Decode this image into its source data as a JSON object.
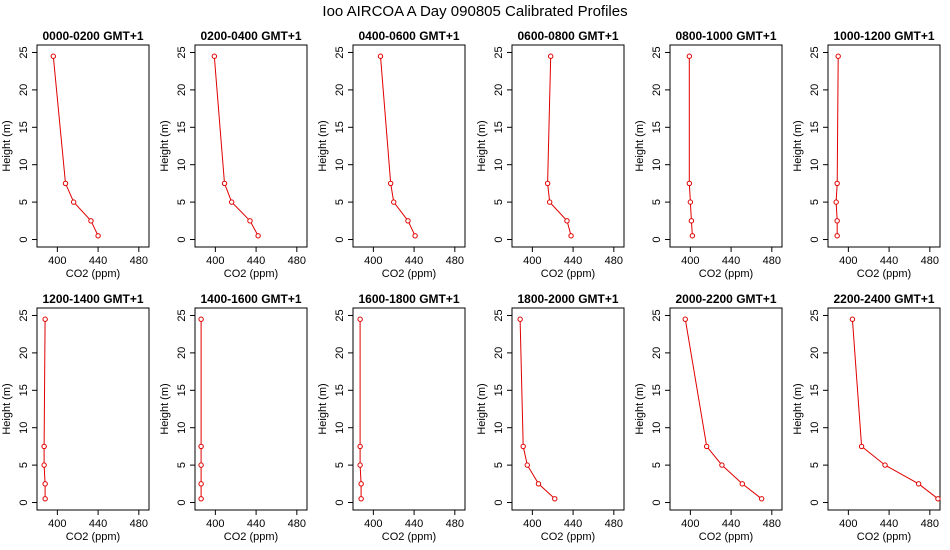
{
  "figure": {
    "title": "Ioo AIRCOA A  Day 090805  Calibrated Profiles",
    "xlabel": "CO2 (ppm)",
    "ylabel": "Height (m)",
    "line_color": "#e00000",
    "axis_color": "#000000"
  },
  "chart_data": [
    {
      "type": "line",
      "title": "0000-0200 GMT+1",
      "xlabel": "CO2 (ppm)",
      "ylabel": "Height (m)",
      "xlim": [
        380,
        490
      ],
      "ylim": [
        -1,
        26
      ],
      "xticks": [
        400,
        440,
        480
      ],
      "yticks": [
        0,
        5,
        10,
        15,
        20,
        25
      ],
      "x": [
        440,
        433,
        416,
        408,
        396
      ],
      "y": [
        0.5,
        2.5,
        5,
        7.5,
        24.5
      ]
    },
    {
      "type": "line",
      "title": "0200-0400 GMT+1",
      "xlabel": "CO2 (ppm)",
      "ylabel": "Height (m)",
      "xlim": [
        380,
        490
      ],
      "ylim": [
        -1,
        26
      ],
      "xticks": [
        400,
        440,
        480
      ],
      "yticks": [
        0,
        5,
        10,
        15,
        20,
        25
      ],
      "x": [
        442,
        434,
        416,
        409,
        399
      ],
      "y": [
        0.5,
        2.5,
        5,
        7.5,
        24.5
      ]
    },
    {
      "type": "line",
      "title": "0400-0600 GMT+1",
      "xlabel": "CO2 (ppm)",
      "ylabel": "Height (m)",
      "xlim": [
        380,
        490
      ],
      "ylim": [
        -1,
        26
      ],
      "xticks": [
        400,
        440,
        480
      ],
      "yticks": [
        0,
        5,
        10,
        15,
        20,
        25
      ],
      "x": [
        441,
        434,
        420,
        417,
        407
      ],
      "y": [
        0.5,
        2.5,
        5,
        7.5,
        24.5
      ]
    },
    {
      "type": "line",
      "title": "0600-0800 GMT+1",
      "xlabel": "CO2 (ppm)",
      "ylabel": "Height (m)",
      "xlim": [
        380,
        490
      ],
      "ylim": [
        -1,
        26
      ],
      "xticks": [
        400,
        440,
        480
      ],
      "yticks": [
        0,
        5,
        10,
        15,
        20,
        25
      ],
      "x": [
        438,
        434,
        417,
        415,
        418
      ],
      "y": [
        0.5,
        2.5,
        5,
        7.5,
        24.5
      ]
    },
    {
      "type": "line",
      "title": "0800-1000 GMT+1",
      "xlabel": "CO2 (ppm)",
      "ylabel": "Height (m)",
      "xlim": [
        380,
        490
      ],
      "ylim": [
        -1,
        26
      ],
      "xticks": [
        400,
        440,
        480
      ],
      "yticks": [
        0,
        5,
        10,
        15,
        20,
        25
      ],
      "x": [
        402,
        401,
        400,
        399,
        399
      ],
      "y": [
        0.5,
        2.5,
        5,
        7.5,
        24.5
      ]
    },
    {
      "type": "line",
      "title": "1000-1200 GMT+1",
      "xlabel": "CO2 (ppm)",
      "ylabel": "Height (m)",
      "xlim": [
        380,
        490
      ],
      "ylim": [
        -1,
        26
      ],
      "xticks": [
        400,
        440,
        480
      ],
      "yticks": [
        0,
        5,
        10,
        15,
        20,
        25
      ],
      "x": [
        389,
        389,
        388,
        389,
        390
      ],
      "y": [
        0.5,
        2.5,
        5,
        7.5,
        24.5
      ]
    },
    {
      "type": "line",
      "title": "1200-1400 GMT+1",
      "xlabel": "CO2 (ppm)",
      "ylabel": "Height (m)",
      "xlim": [
        380,
        490
      ],
      "ylim": [
        -1,
        26
      ],
      "xticks": [
        400,
        440,
        480
      ],
      "yticks": [
        0,
        5,
        10,
        15,
        20,
        25
      ],
      "x": [
        388,
        388,
        387,
        387,
        388
      ],
      "y": [
        0.5,
        2.5,
        5,
        7.5,
        24.5
      ]
    },
    {
      "type": "line",
      "title": "1400-1600 GMT+1",
      "xlabel": "CO2 (ppm)",
      "ylabel": "Height (m)",
      "xlim": [
        380,
        490
      ],
      "ylim": [
        -1,
        26
      ],
      "xticks": [
        400,
        440,
        480
      ],
      "yticks": [
        0,
        5,
        10,
        15,
        20,
        25
      ],
      "x": [
        386,
        386,
        386,
        386,
        386
      ],
      "y": [
        0.5,
        2.5,
        5,
        7.5,
        24.5
      ]
    },
    {
      "type": "line",
      "title": "1600-1800 GMT+1",
      "xlabel": "CO2 (ppm)",
      "ylabel": "Height (m)",
      "xlim": [
        380,
        490
      ],
      "ylim": [
        -1,
        26
      ],
      "xticks": [
        400,
        440,
        480
      ],
      "yticks": [
        0,
        5,
        10,
        15,
        20,
        25
      ],
      "x": [
        388,
        388,
        387,
        387,
        387
      ],
      "y": [
        0.5,
        2.5,
        5,
        7.5,
        24.5
      ]
    },
    {
      "type": "line",
      "title": "1800-2000 GMT+1",
      "xlabel": "CO2 (ppm)",
      "ylabel": "Height (m)",
      "xlim": [
        380,
        490
      ],
      "ylim": [
        -1,
        26
      ],
      "xticks": [
        400,
        440,
        480
      ],
      "yticks": [
        0,
        5,
        10,
        15,
        20,
        25
      ],
      "x": [
        422,
        406,
        395,
        391,
        388
      ],
      "y": [
        0.5,
        2.5,
        5,
        7.5,
        24.5
      ]
    },
    {
      "type": "line",
      "title": "2000-2200 GMT+1",
      "xlabel": "CO2 (ppm)",
      "ylabel": "Height (m)",
      "xlim": [
        380,
        490
      ],
      "ylim": [
        -1,
        26
      ],
      "xticks": [
        400,
        440,
        480
      ],
      "yticks": [
        0,
        5,
        10,
        15,
        20,
        25
      ],
      "x": [
        470,
        451,
        431,
        416,
        395
      ],
      "y": [
        0.5,
        2.5,
        5,
        7.5,
        24.5
      ]
    },
    {
      "type": "line",
      "title": "2200-2400 GMT+1",
      "xlabel": "CO2 (ppm)",
      "ylabel": "Height (m)",
      "xlim": [
        380,
        490
      ],
      "ylim": [
        -1,
        26
      ],
      "xticks": [
        400,
        440,
        480
      ],
      "yticks": [
        0,
        5,
        10,
        15,
        20,
        25
      ],
      "x": [
        488,
        469,
        436,
        413,
        404
      ],
      "y": [
        0.5,
        2.5,
        5,
        7.5,
        24.5
      ]
    }
  ]
}
